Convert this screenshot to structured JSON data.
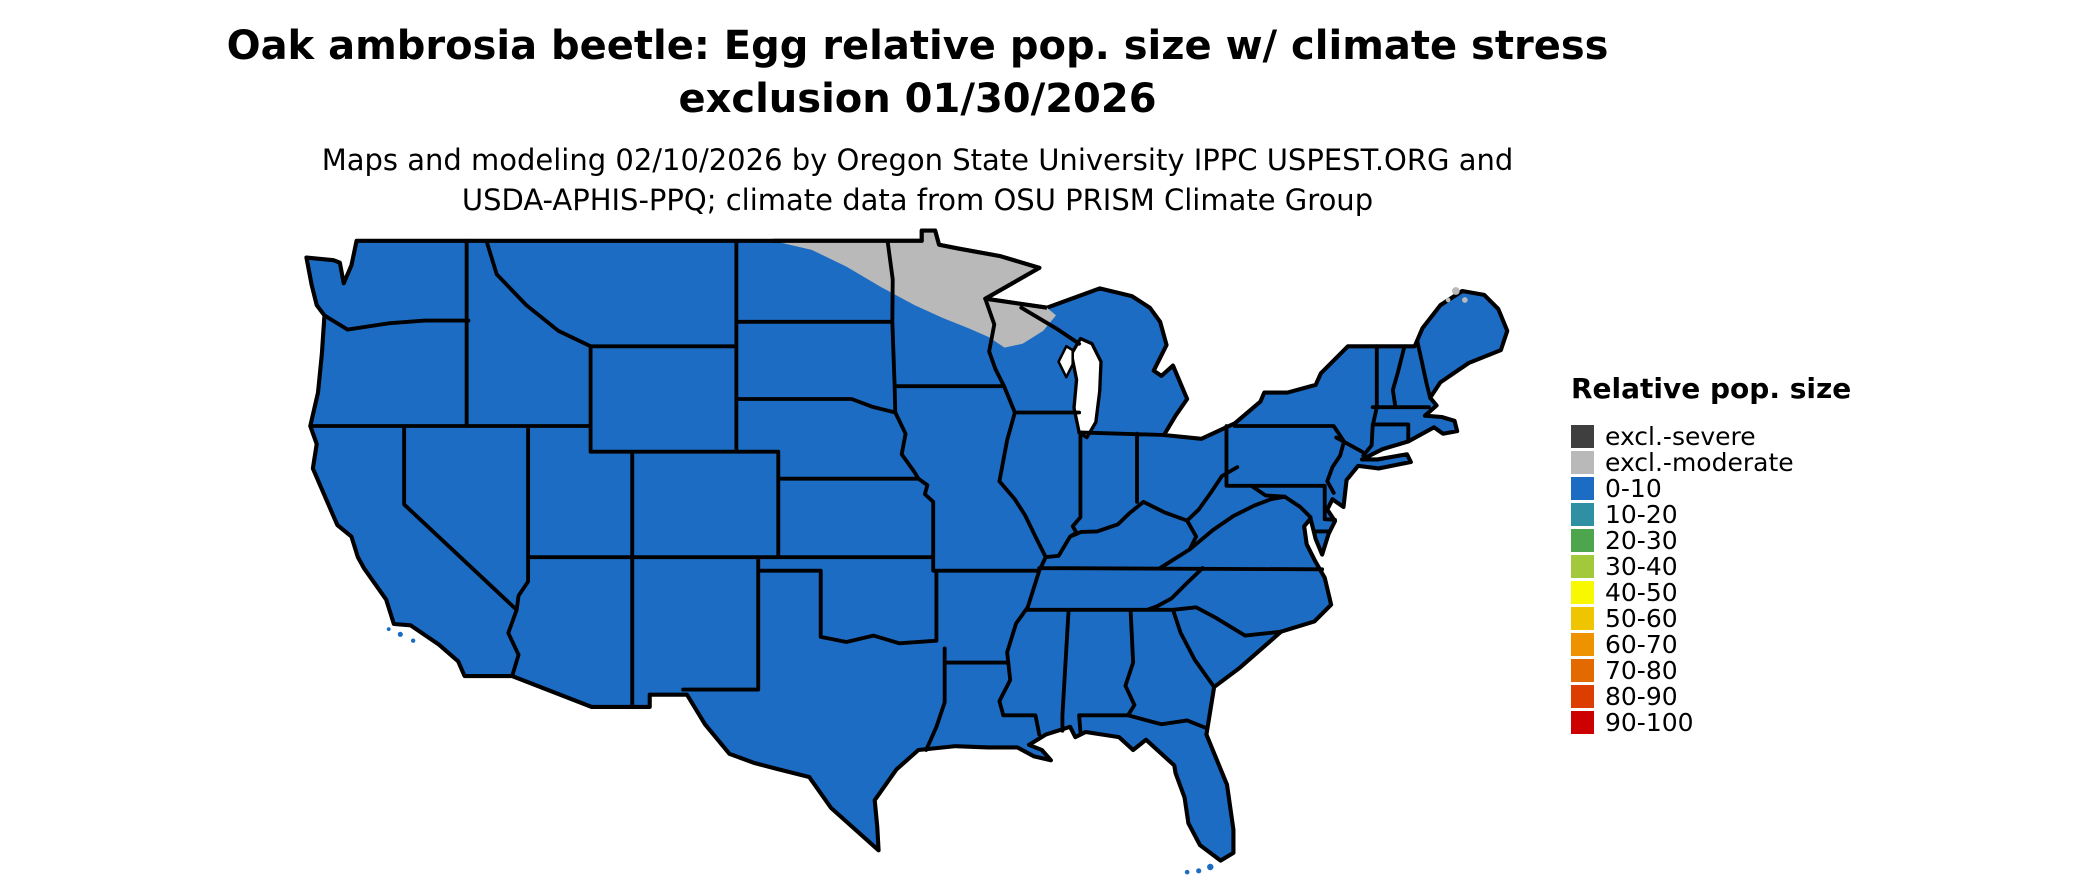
{
  "title": {
    "line1": "Oak ambrosia beetle: Egg relative pop. size w/ climate stress",
    "line2": "exclusion 01/30/2026"
  },
  "subtitle": {
    "line1": "Maps and modeling 02/10/2026 by Oregon State University IPPC USPEST.ORG and",
    "line2": "USDA-APHIS-PPQ; climate data from OSU PRISM Climate Group"
  },
  "legend": {
    "title": "Relative pop. size",
    "entries": [
      {
        "label": "excl.-severe",
        "color": "#3f3f3f"
      },
      {
        "label": "excl.-moderate",
        "color": "#b9b9b9"
      },
      {
        "label": "0-10",
        "color": "#1d6cc4"
      },
      {
        "label": "10-20",
        "color": "#2f8fa3"
      },
      {
        "label": "20-30",
        "color": "#4da64d"
      },
      {
        "label": "30-40",
        "color": "#a2c83c"
      },
      {
        "label": "40-50",
        "color": "#f8f800"
      },
      {
        "label": "50-60",
        "color": "#eec500"
      },
      {
        "label": "60-70",
        "color": "#ef9200"
      },
      {
        "label": "70-80",
        "color": "#e26a00"
      },
      {
        "label": "80-90",
        "color": "#dc3d00"
      },
      {
        "label": "90-100",
        "color": "#cd0000"
      }
    ]
  },
  "map": {
    "land_color": "#1d6cc4",
    "water_color": "#ffffff",
    "exclusion_moderate_color": "#b9b9b9",
    "exclusion_severe_color": "#3f3f3f",
    "border_color": "#000000",
    "background": "#ffffff"
  }
}
